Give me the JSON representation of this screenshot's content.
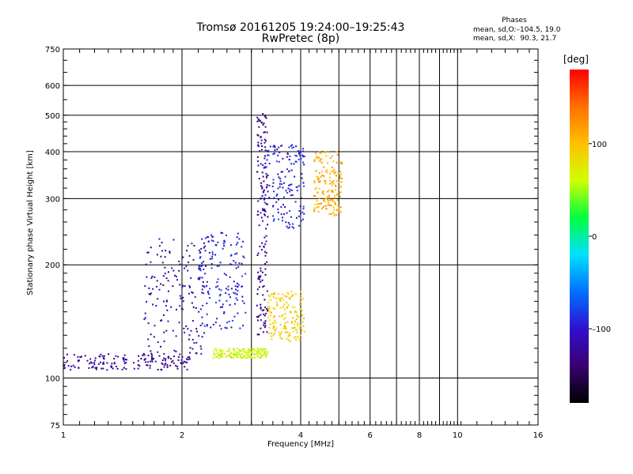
{
  "title_line1": "Tromsø 20161205 19:24:00–19:25:43",
  "title_line2": "RwPretec (8p)",
  "phases": {
    "heading": "Phases",
    "line_o": "mean, sd,O:–104.5, 19.0",
    "line_x": "mean, sd,X:  90.3, 21.7"
  },
  "colorbar": {
    "unit": "[deg]",
    "ticks": [
      "100",
      "0",
      "–100"
    ],
    "tick_values": [
      100,
      0,
      -100
    ],
    "range": [
      -180,
      180
    ],
    "colors": [
      "#000000",
      "#3a0070",
      "#3010d0",
      "#0070ff",
      "#00e0ff",
      "#00ff40",
      "#d0ff00",
      "#ffc000",
      "#ff7000",
      "#ff0000"
    ]
  },
  "chart_data": {
    "type": "scatter",
    "title": "Tromsø 20161205 19:24:00–19:25:43",
    "subtitle": "RwPretec (8p)",
    "xlabel": "Frequency [MHz]",
    "ylabel": "Stationary phase Virtual Height [km]",
    "x_scale": "log",
    "y_scale": "log",
    "xlim": [
      1,
      16
    ],
    "ylim": [
      75,
      750
    ],
    "grid": true,
    "x_ticks": [
      1,
      2,
      4,
      6,
      8,
      10,
      16
    ],
    "x_tick_labels": [
      "1",
      "2",
      "4",
      "6",
      "8",
      "10",
      "16"
    ],
    "y_ticks": [
      75,
      100,
      200,
      300,
      400,
      500,
      600,
      750
    ],
    "y_tick_labels": [
      "75",
      "100",
      "200",
      "300",
      "400",
      "500",
      "600",
      "750"
    ],
    "color_scale": "phase [deg]",
    "clusters": [
      {
        "name": "",
        "x_range": [
          1.0,
          2.1
        ],
        "y_range": [
          105,
          116
        ],
        "phase": -125
      },
      {
        "name": "",
        "x_range": [
          1.6,
          2.3
        ],
        "y_range": [
          115,
          235
        ],
        "phase": -120
      },
      {
        "name": "",
        "x_range": [
          2.2,
          2.9
        ],
        "y_range": [
          135,
          245
        ],
        "phase": -95
      },
      {
        "name": "",
        "x_range": [
          2.4,
          3.3
        ],
        "y_range": [
          113,
          120
        ],
        "phase": 65
      },
      {
        "name": "",
        "x_range": [
          3.1,
          3.3
        ],
        "y_range": [
          130,
          510
        ],
        "phase": -130
      },
      {
        "name": "",
        "x_range": [
          3.2,
          4.1
        ],
        "y_range": [
          250,
          420
        ],
        "phase": -95
      },
      {
        "name": "",
        "x_range": [
          3.3,
          4.1
        ],
        "y_range": [
          125,
          170
        ],
        "phase": 90
      },
      {
        "name": "",
        "x_range": [
          4.3,
          5.1
        ],
        "y_range": [
          270,
          400
        ],
        "phase": 110
      }
    ]
  }
}
